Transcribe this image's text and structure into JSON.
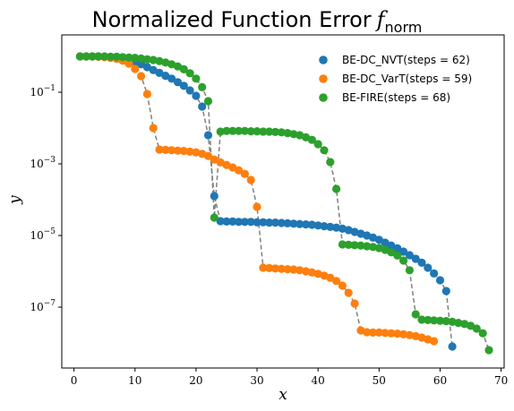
{
  "chart_data": {
    "type": "scatter",
    "title": "Normalized Function Error",
    "title_math_symbol": "f",
    "title_math_subscript": "norm",
    "xlabel": "x",
    "ylabel": "y",
    "xlim": [
      -2,
      70.5
    ],
    "ylim_log10": [
      -8.7,
      0.6
    ],
    "y_scale": "log",
    "x_ticks": [
      0,
      10,
      20,
      30,
      40,
      50,
      60,
      70
    ],
    "y_ticks": [
      {
        "exp": -1,
        "base": "10",
        "power": "−1"
      },
      {
        "exp": -3,
        "base": "10",
        "power": "−3"
      },
      {
        "exp": -5,
        "base": "10",
        "power": "−5"
      },
      {
        "exp": -7,
        "base": "10",
        "power": "−7"
      }
    ],
    "grid": false,
    "legend_position": "top-right",
    "connector_color": "#808080",
    "series": [
      {
        "name": "BE-DC_NVT(steps = 62)",
        "color": "#1f77b4",
        "points": [
          [
            1,
            0.0
          ],
          [
            2,
            0.0
          ],
          [
            3,
            0.0
          ],
          [
            4,
            0.0
          ],
          [
            5,
            -0.01
          ],
          [
            6,
            -0.02
          ],
          [
            7,
            -0.03
          ],
          [
            8,
            -0.06
          ],
          [
            9,
            -0.1
          ],
          [
            10,
            -0.15
          ],
          [
            11,
            -0.22
          ],
          [
            12,
            -0.3
          ],
          [
            13,
            -0.38
          ],
          [
            14,
            -0.46
          ],
          [
            15,
            -0.54
          ],
          [
            16,
            -0.62
          ],
          [
            17,
            -0.72
          ],
          [
            18,
            -0.82
          ],
          [
            19,
            -0.95
          ],
          [
            20,
            -1.1
          ],
          [
            21,
            -1.4
          ],
          [
            22,
            -2.2
          ],
          [
            23,
            -3.9
          ],
          [
            24,
            -4.6
          ],
          [
            25,
            -4.61
          ],
          [
            26,
            -4.61
          ],
          [
            27,
            -4.62
          ],
          [
            28,
            -4.62
          ],
          [
            29,
            -4.62
          ],
          [
            30,
            -4.63
          ],
          [
            31,
            -4.63
          ],
          [
            32,
            -4.64
          ],
          [
            33,
            -4.64
          ],
          [
            34,
            -4.65
          ],
          [
            35,
            -4.66
          ],
          [
            36,
            -4.67
          ],
          [
            37,
            -4.68
          ],
          [
            38,
            -4.69
          ],
          [
            39,
            -4.7
          ],
          [
            40,
            -4.72
          ],
          [
            41,
            -4.74
          ],
          [
            42,
            -4.76
          ],
          [
            43,
            -4.78
          ],
          [
            44,
            -4.81
          ],
          [
            45,
            -4.85
          ],
          [
            46,
            -4.9
          ],
          [
            47,
            -4.95
          ],
          [
            48,
            -5.0
          ],
          [
            49,
            -5.06
          ],
          [
            50,
            -5.12
          ],
          [
            51,
            -5.2
          ],
          [
            52,
            -5.28
          ],
          [
            53,
            -5.36
          ],
          [
            54,
            -5.45
          ],
          [
            55,
            -5.55
          ],
          [
            56,
            -5.65
          ],
          [
            57,
            -5.76
          ],
          [
            58,
            -5.9
          ],
          [
            59,
            -6.06
          ],
          [
            60,
            -6.25
          ],
          [
            61,
            -6.55
          ],
          [
            62,
            -8.1
          ]
        ]
      },
      {
        "name": "BE-DC_VarT(steps = 59)",
        "color": "#ff7f0e",
        "points": [
          [
            1,
            0.0
          ],
          [
            2,
            0.0
          ],
          [
            3,
            0.0
          ],
          [
            4,
            -0.01
          ],
          [
            5,
            -0.02
          ],
          [
            6,
            -0.04
          ],
          [
            7,
            -0.07
          ],
          [
            8,
            -0.12
          ],
          [
            9,
            -0.2
          ],
          [
            10,
            -0.35
          ],
          [
            11,
            -0.55
          ],
          [
            12,
            -1.05
          ],
          [
            13,
            -2.0
          ],
          [
            14,
            -2.6
          ],
          [
            15,
            -2.61
          ],
          [
            16,
            -2.62
          ],
          [
            17,
            -2.63
          ],
          [
            18,
            -2.64
          ],
          [
            19,
            -2.66
          ],
          [
            20,
            -2.68
          ],
          [
            21,
            -2.72
          ],
          [
            22,
            -2.78
          ],
          [
            23,
            -2.88
          ],
          [
            24,
            -2.96
          ],
          [
            25,
            -3.03
          ],
          [
            26,
            -3.1
          ],
          [
            27,
            -3.18
          ],
          [
            28,
            -3.28
          ],
          [
            29,
            -3.45
          ],
          [
            30,
            -4.2
          ],
          [
            31,
            -5.9
          ],
          [
            32,
            -5.91
          ],
          [
            33,
            -5.92
          ],
          [
            34,
            -5.93
          ],
          [
            35,
            -5.94
          ],
          [
            36,
            -5.95
          ],
          [
            37,
            -5.97
          ],
          [
            38,
            -6.0
          ],
          [
            39,
            -6.03
          ],
          [
            40,
            -6.07
          ],
          [
            41,
            -6.12
          ],
          [
            42,
            -6.18
          ],
          [
            43,
            -6.27
          ],
          [
            44,
            -6.4
          ],
          [
            45,
            -6.6
          ],
          [
            46,
            -6.9
          ],
          [
            47,
            -7.65
          ],
          [
            48,
            -7.7
          ],
          [
            49,
            -7.71
          ],
          [
            50,
            -7.71
          ],
          [
            51,
            -7.72
          ],
          [
            52,
            -7.73
          ],
          [
            53,
            -7.74
          ],
          [
            54,
            -7.76
          ],
          [
            55,
            -7.78
          ],
          [
            56,
            -7.81
          ],
          [
            57,
            -7.85
          ],
          [
            58,
            -7.9
          ],
          [
            59,
            -7.95
          ]
        ]
      },
      {
        "name": "BE-FIRE(steps = 68)",
        "color": "#2ca02c",
        "points": [
          [
            1,
            0.0
          ],
          [
            2,
            0.0
          ],
          [
            3,
            0.0
          ],
          [
            4,
            0.0
          ],
          [
            5,
            0.0
          ],
          [
            6,
            -0.01
          ],
          [
            7,
            -0.01
          ],
          [
            8,
            -0.02
          ],
          [
            9,
            -0.03
          ],
          [
            10,
            -0.04
          ],
          [
            11,
            -0.06
          ],
          [
            12,
            -0.08
          ],
          [
            13,
            -0.1
          ],
          [
            14,
            -0.13
          ],
          [
            15,
            -0.17
          ],
          [
            16,
            -0.22
          ],
          [
            17,
            -0.28
          ],
          [
            18,
            -0.36
          ],
          [
            19,
            -0.47
          ],
          [
            20,
            -0.62
          ],
          [
            21,
            -0.86
          ],
          [
            22,
            -1.25
          ],
          [
            23,
            -4.5
          ],
          [
            24,
            -2.1
          ],
          [
            25,
            -2.08
          ],
          [
            26,
            -2.08
          ],
          [
            27,
            -2.08
          ],
          [
            28,
            -2.08
          ],
          [
            29,
            -2.09
          ],
          [
            30,
            -2.09
          ],
          [
            31,
            -2.1
          ],
          [
            32,
            -2.1
          ],
          [
            33,
            -2.11
          ],
          [
            34,
            -2.12
          ],
          [
            35,
            -2.14
          ],
          [
            36,
            -2.17
          ],
          [
            37,
            -2.2
          ],
          [
            38,
            -2.26
          ],
          [
            39,
            -2.33
          ],
          [
            40,
            -2.45
          ],
          [
            41,
            -2.62
          ],
          [
            42,
            -2.95
          ],
          [
            43,
            -3.7
          ],
          [
            44,
            -5.25
          ],
          [
            45,
            -5.26
          ],
          [
            46,
            -5.27
          ],
          [
            47,
            -5.28
          ],
          [
            48,
            -5.3
          ],
          [
            49,
            -5.32
          ],
          [
            50,
            -5.35
          ],
          [
            51,
            -5.4
          ],
          [
            52,
            -5.47
          ],
          [
            53,
            -5.56
          ],
          [
            54,
            -5.7
          ],
          [
            55,
            -5.97
          ],
          [
            56,
            -7.2
          ],
          [
            57,
            -7.35
          ],
          [
            58,
            -7.36
          ],
          [
            59,
            -7.37
          ],
          [
            60,
            -7.38
          ],
          [
            61,
            -7.39
          ],
          [
            62,
            -7.41
          ],
          [
            63,
            -7.44
          ],
          [
            64,
            -7.47
          ],
          [
            65,
            -7.52
          ],
          [
            66,
            -7.6
          ],
          [
            67,
            -7.73
          ],
          [
            68,
            -8.2
          ]
        ]
      }
    ]
  }
}
